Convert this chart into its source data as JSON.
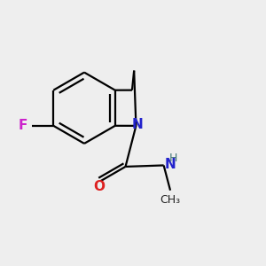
{
  "background_color": "#eeeeee",
  "figsize": [
    3.0,
    3.0
  ],
  "dpi": 100,
  "bond_lw": 1.6,
  "bond_color": "#000000",
  "N_color": "#2222cc",
  "F_color": "#cc22cc",
  "O_color": "#dd2222",
  "NH_color": "#447777",
  "CH3_color": "#222222",
  "xlim": [
    0.0,
    1.0
  ],
  "ylim": [
    0.0,
    1.0
  ]
}
